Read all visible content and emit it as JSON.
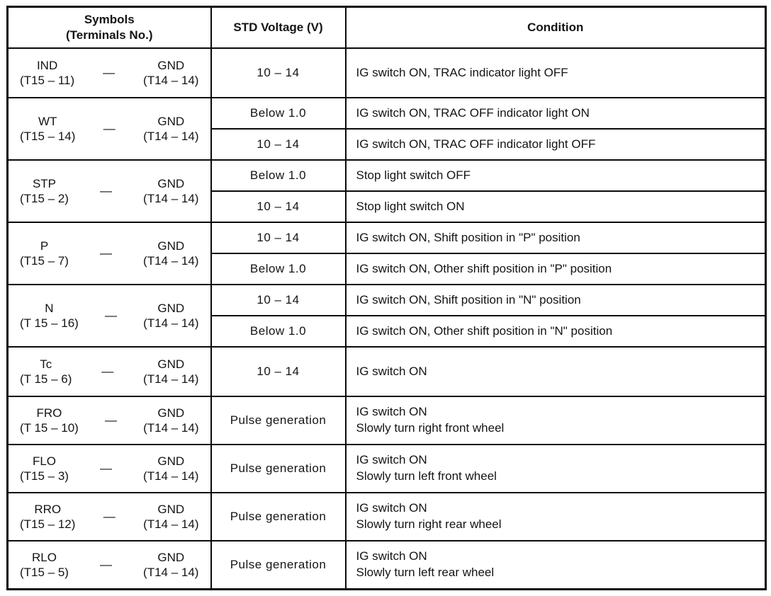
{
  "page": {
    "background": "#ffffff",
    "ink": "#141414",
    "border_color": "#0a0a0a"
  },
  "table": {
    "headers": {
      "symbols_line1": "Symbols",
      "symbols_line2": "(Terminals No.)",
      "voltage": "STD Voltage (V)",
      "condition": "Condition"
    },
    "separator_dash": "—",
    "rows": [
      {
        "symbol": "IND",
        "symbol_terminal": "(T15 – 11)",
        "gnd": "GND",
        "gnd_terminal": "(T14 – 14)",
        "entries": [
          {
            "voltage": "10 – 14",
            "condition_lines": [
              "IG switch ON, TRAC indicator light OFF"
            ]
          }
        ]
      },
      {
        "symbol": "WT",
        "symbol_terminal": "(T15 – 14)",
        "gnd": "GND",
        "gnd_terminal": "(T14 – 14)",
        "entries": [
          {
            "voltage": "Below 1.0",
            "condition_lines": [
              "IG switch ON, TRAC OFF indicator light ON"
            ]
          },
          {
            "voltage": "10 – 14",
            "condition_lines": [
              "IG switch ON, TRAC OFF indicator light OFF"
            ]
          }
        ]
      },
      {
        "symbol": "STP",
        "symbol_terminal": "(T15 – 2)",
        "gnd": "GND",
        "gnd_terminal": "(T14 – 14)",
        "entries": [
          {
            "voltage": "Below 1.0",
            "condition_lines": [
              "Stop light switch OFF"
            ]
          },
          {
            "voltage": "10 – 14",
            "condition_lines": [
              "Stop light switch ON"
            ]
          }
        ]
      },
      {
        "symbol": "P",
        "symbol_terminal": "(T15 – 7)",
        "gnd": "GND",
        "gnd_terminal": "(T14 – 14)",
        "entries": [
          {
            "voltage": "10 – 14",
            "condition_lines": [
              "IG switch ON, Shift position in \"P\" position"
            ]
          },
          {
            "voltage": "Below 1.0",
            "condition_lines": [
              "IG switch ON, Other shift position in \"P\" position"
            ]
          }
        ]
      },
      {
        "symbol": "N",
        "symbol_terminal": "(T 15 – 16)",
        "gnd": "GND",
        "gnd_terminal": "(T14 – 14)",
        "entries": [
          {
            "voltage": "10 – 14",
            "condition_lines": [
              "IG switch ON, Shift position in \"N\" position"
            ]
          },
          {
            "voltage": "Below 1.0",
            "condition_lines": [
              "IG switch ON, Other shift position in \"N\" position"
            ]
          }
        ]
      },
      {
        "symbol": "Tc",
        "symbol_terminal": "(T 15 – 6)",
        "gnd": "GND",
        "gnd_terminal": "(T14 – 14)",
        "entries": [
          {
            "voltage": "10 – 14",
            "condition_lines": [
              "IG switch ON"
            ]
          }
        ]
      },
      {
        "symbol": "FRO",
        "symbol_terminal": "(T 15 – 10)",
        "gnd": "GND",
        "gnd_terminal": "(T14 – 14)",
        "entries": [
          {
            "voltage": "Pulse generation",
            "condition_lines": [
              "IG switch ON",
              "Slowly turn right front wheel"
            ]
          }
        ]
      },
      {
        "symbol": "FLO",
        "symbol_terminal": "(T15 – 3)",
        "gnd": "GND",
        "gnd_terminal": "(T14 – 14)",
        "entries": [
          {
            "voltage": "Pulse generation",
            "condition_lines": [
              "IG switch ON",
              "Slowly turn left front wheel"
            ]
          }
        ]
      },
      {
        "symbol": "RRO",
        "symbol_terminal": "(T15 – 12)",
        "gnd": "GND",
        "gnd_terminal": "(T14 – 14)",
        "entries": [
          {
            "voltage": "Pulse generation",
            "condition_lines": [
              "IG switch ON",
              "Slowly turn right rear wheel"
            ]
          }
        ]
      },
      {
        "symbol": "RLO",
        "symbol_terminal": "(T15 – 5)",
        "gnd": "GND",
        "gnd_terminal": "(T14 – 14)",
        "entries": [
          {
            "voltage": "Pulse generation",
            "condition_lines": [
              "IG switch ON",
              "Slowly turn left rear wheel"
            ]
          }
        ]
      }
    ]
  }
}
